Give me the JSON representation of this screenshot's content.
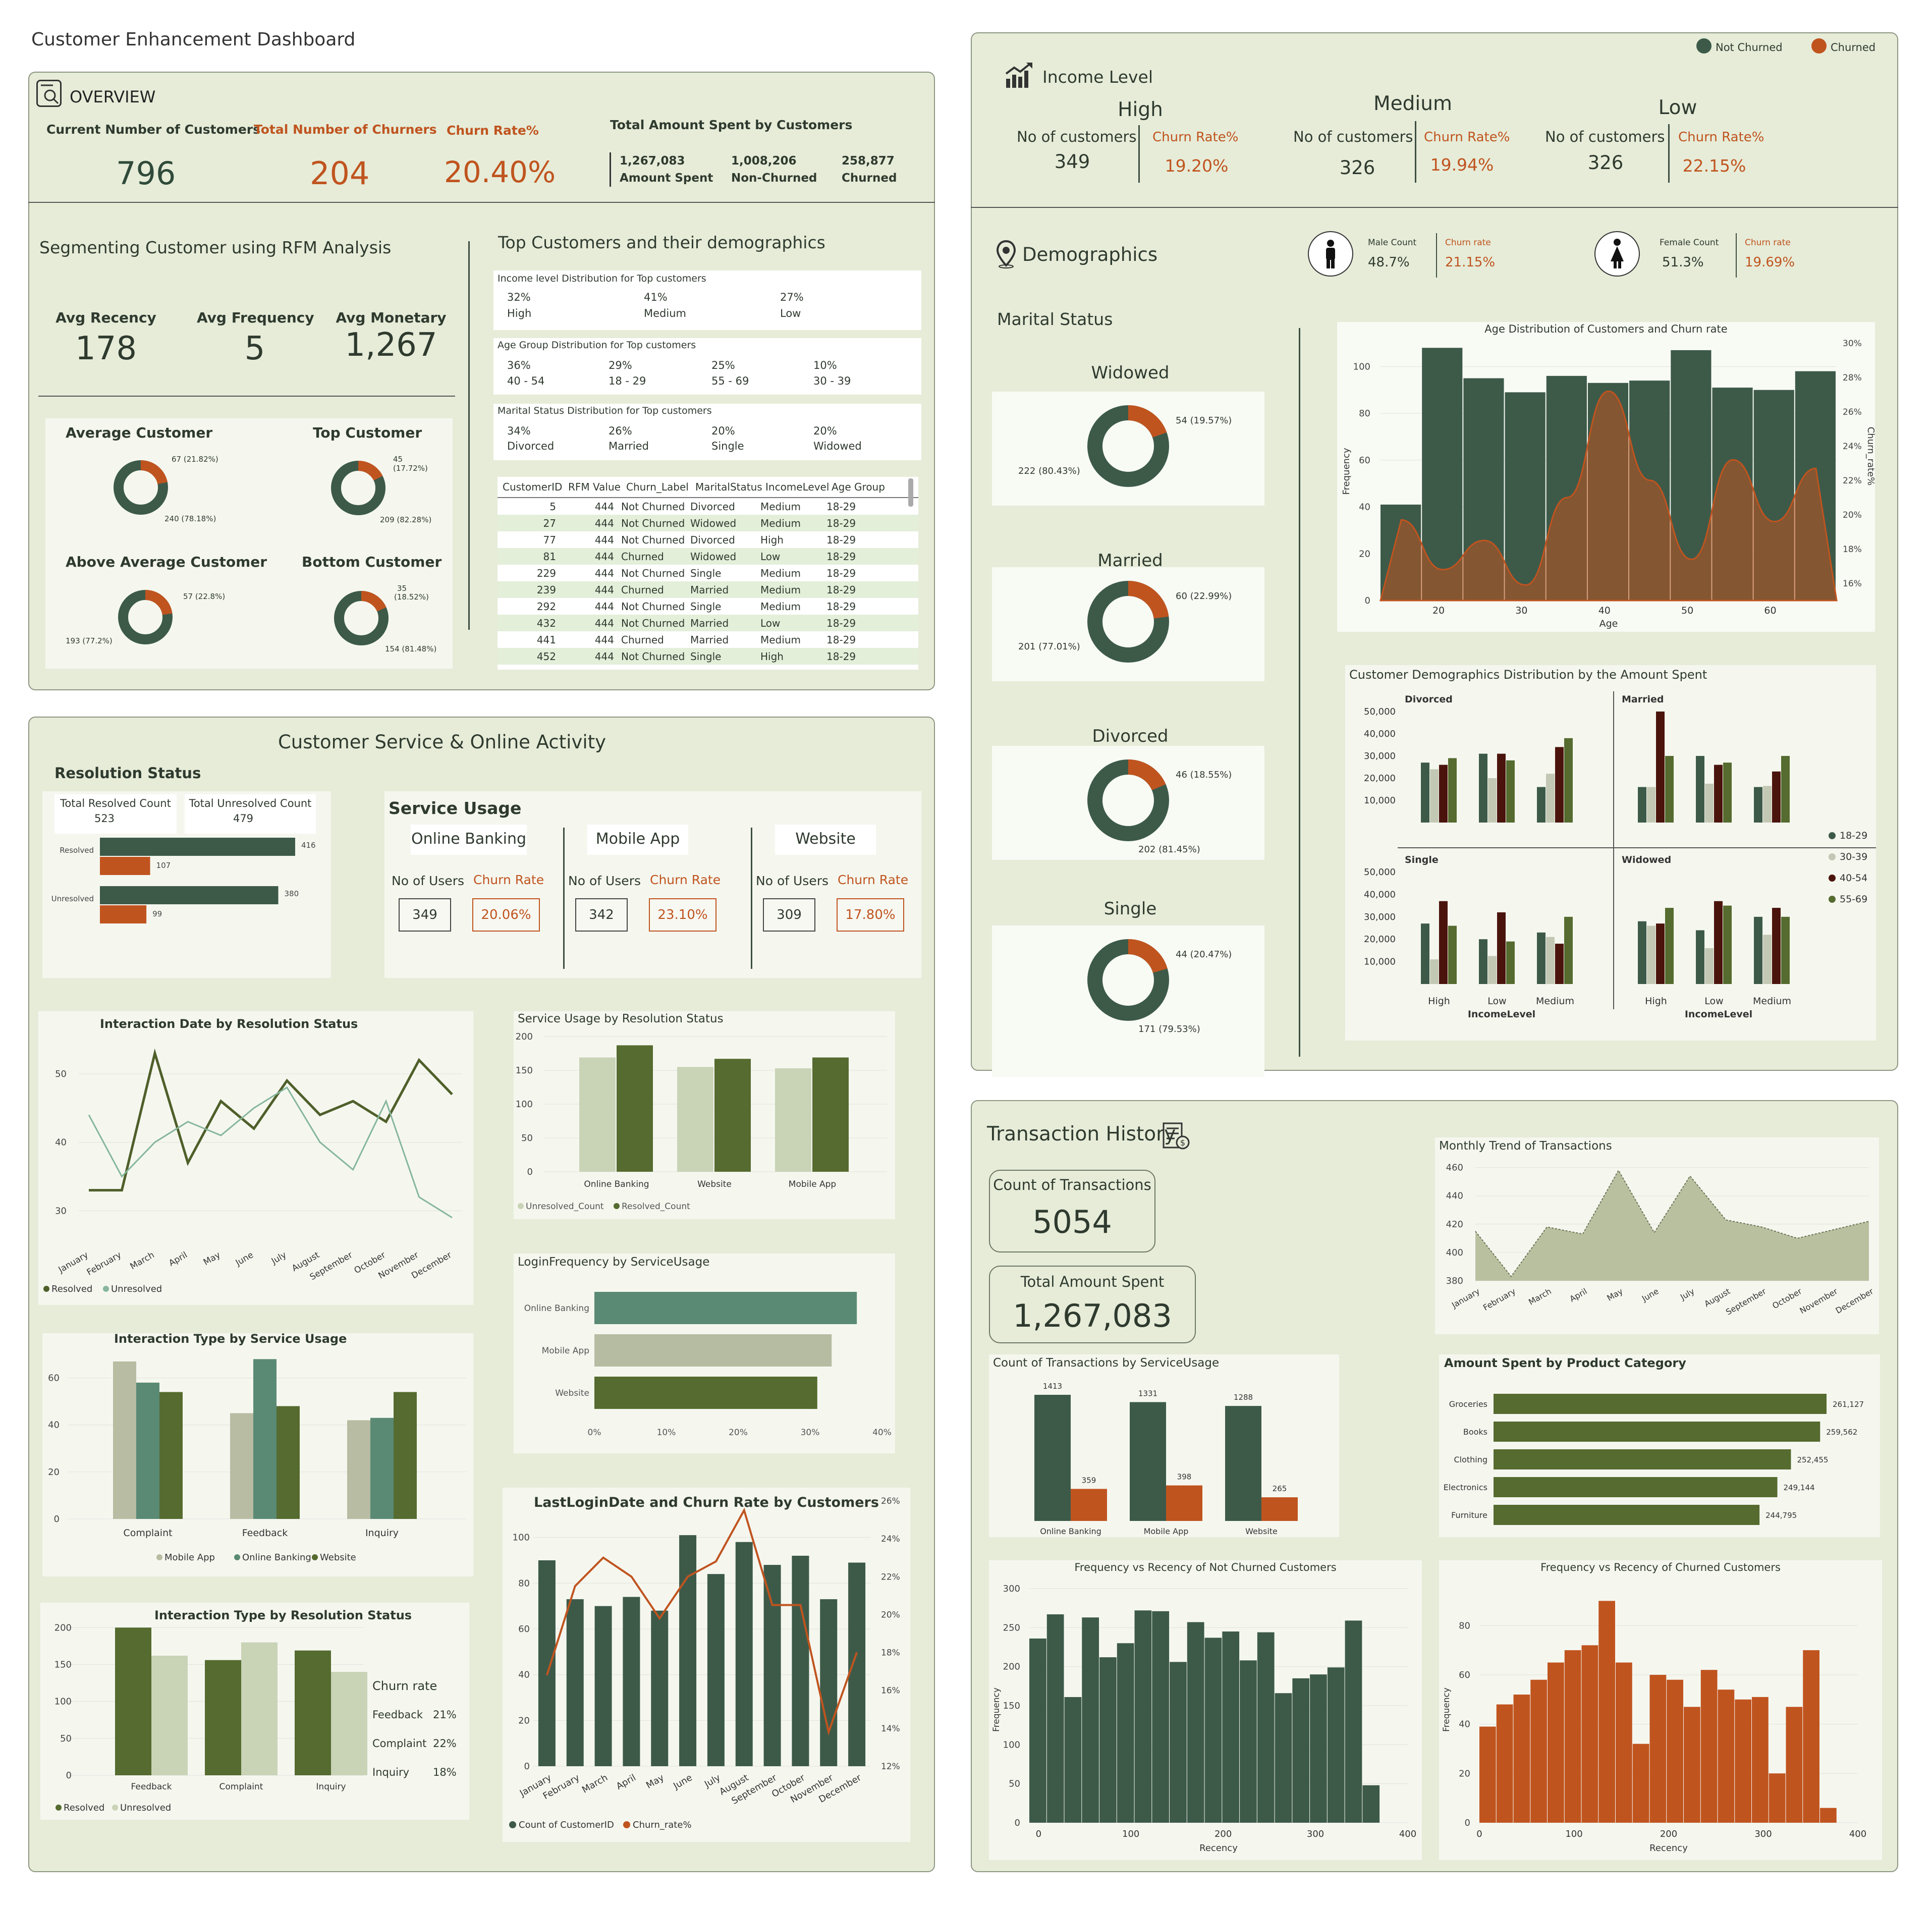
{
  "page_title": "Customer Enhancement Dashboard",
  "colors": {
    "dark_green": "#3d5a49",
    "orange": "#c0541f",
    "olive": "#556b2f",
    "sage": "#c9d3b6",
    "teal": "#5a8a74",
    "maroon": "#4a140d",
    "panel": "#e6ecd8"
  },
  "overview": {
    "title": "OVERVIEW",
    "current_label": "Current Number of Customers",
    "current_value": "796",
    "churners_label": "Total Number of Churners",
    "churners_value": "204",
    "churn_rate_label": "Churn Rate%",
    "churn_rate_value": "20.40%",
    "amount_label": "Total Amount Spent by Customers",
    "amount_spent": "1,267,083",
    "amount_spent_label": "Amount Spent",
    "non_churned": "1,008,206",
    "non_churned_label": "Non-Churned",
    "churned": "258,877",
    "churned_label": "Churned"
  },
  "rfm": {
    "title": "Segmenting Customer using RFM Analysis",
    "recency_label": "Avg Recency",
    "recency_value": "178",
    "frequency_label": "Avg Frequency",
    "frequency_value": "5",
    "monetary_label": "Avg Monetary",
    "monetary_value": "1,267",
    "segments": [
      {
        "name": "Average Customer",
        "churned": "67 (21.82%)",
        "not_churned": "240 (78.18%)",
        "pct": 21.82
      },
      {
        "name": "Top Customer",
        "churned": "45 (17.72%)",
        "churned_a": "45",
        "churned_b": "(17.72%)",
        "not_churned": "209 (82.28%)",
        "pct": 17.72
      },
      {
        "name": "Above Average Customer",
        "churned": "57 (22.8%)",
        "not_churned": "193 (77.2%)",
        "pct": 22.8
      },
      {
        "name": "Bottom Customer",
        "churned": "35 (18.52%)",
        "churned_a": "35",
        "churned_b": "(18.52%)",
        "not_churned": "154 (81.48%)",
        "pct": 18.52
      }
    ]
  },
  "top_customers": {
    "title": "Top Customers and their demographics",
    "income_title": "Income level Distribution for Top customers",
    "income": [
      {
        "pct": "32%",
        "label": "High"
      },
      {
        "pct": "41%",
        "label": "Medium"
      },
      {
        "pct": "27%",
        "label": "Low"
      }
    ],
    "age_title": "Age Group Distribution for Top customers",
    "age": [
      {
        "pct": "36%",
        "label": "40 - 54"
      },
      {
        "pct": "29%",
        "label": "18 - 29"
      },
      {
        "pct": "25%",
        "label": "55 - 69"
      },
      {
        "pct": "10%",
        "label": "30 - 39"
      }
    ],
    "marital_title": "Marital Status Distribution for Top customers",
    "marital": [
      {
        "pct": "34%",
        "label": "Divorced"
      },
      {
        "pct": "26%",
        "label": "Married"
      },
      {
        "pct": "20%",
        "label": "Single"
      },
      {
        "pct": "20%",
        "label": "Widowed"
      }
    ],
    "table_headers": [
      "CustomerID",
      "RFM Value",
      "Churn_Label",
      "MaritalStatus",
      "IncomeLevel",
      "Age Group"
    ],
    "table_rows": [
      [
        "5",
        "444",
        "Not Churned",
        "Divorced",
        "Medium",
        "18-29"
      ],
      [
        "27",
        "444",
        "Not Churned",
        "Widowed",
        "Medium",
        "18-29"
      ],
      [
        "77",
        "444",
        "Not Churned",
        "Divorced",
        "High",
        "18-29"
      ],
      [
        "81",
        "444",
        "Churned",
        "Widowed",
        "Low",
        "18-29"
      ],
      [
        "229",
        "444",
        "Not Churned",
        "Single",
        "Medium",
        "18-29"
      ],
      [
        "239",
        "444",
        "Churned",
        "Married",
        "Medium",
        "18-29"
      ],
      [
        "292",
        "444",
        "Not Churned",
        "Single",
        "Medium",
        "18-29"
      ],
      [
        "432",
        "444",
        "Not Churned",
        "Married",
        "Low",
        "18-29"
      ],
      [
        "441",
        "444",
        "Churned",
        "Married",
        "Medium",
        "18-29"
      ],
      [
        "452",
        "444",
        "Not Churned",
        "Single",
        "High",
        "18-29"
      ]
    ]
  },
  "customer_service": {
    "title": "Customer Service & Online Activity",
    "resolution_title": "Resolution Status",
    "resolved_label": "Total Resolved Count",
    "resolved_value": "523",
    "unresolved_label": "Total Unresolved Count",
    "unresolved_value": "479",
    "res_rows": [
      {
        "label": "Resolved",
        "a": 416,
        "b": 107
      },
      {
        "label": "Unresolved",
        "a": 380,
        "b": 99
      }
    ],
    "service_usage_title": "Service Usage",
    "services": [
      {
        "name": "Online Banking",
        "users": "349",
        "churn": "20.06%"
      },
      {
        "name": "Mobile App",
        "users": "342",
        "churn": "23.10%"
      },
      {
        "name": "Website",
        "users": "309",
        "churn": "17.80%"
      }
    ],
    "users_label": "No of Users",
    "churn_label": "Churn Rate"
  },
  "income_level": {
    "title": "Income Level",
    "legend": [
      "Not Churned",
      "Churned"
    ],
    "levels": [
      {
        "name": "High",
        "count": "349",
        "churn": "19.20%"
      },
      {
        "name": "Medium",
        "count": "326",
        "churn": "19.94%"
      },
      {
        "name": "Low",
        "count": "326",
        "churn": "22.15%"
      }
    ],
    "count_label": "No of customers",
    "churn_label": "Churn Rate%"
  },
  "demographics": {
    "title": "Demographics",
    "male_label": "Male Count",
    "male_value": "48.7%",
    "male_churn_label": "Churn rate",
    "male_churn": "21.15%",
    "female_label": "Female Count",
    "female_value": "51.3%",
    "female_churn_label": "Churn rate",
    "female_churn": "19.69%",
    "marital_title": "Marital Status",
    "marital": [
      {
        "name": "Widowed",
        "churned": "54 (19.57%)",
        "not_churned": "222 (80.43%)",
        "pct": 19.57
      },
      {
        "name": "Married",
        "churned": "60 (22.99%)",
        "not_churned": "201 (77.01%)",
        "pct": 22.99
      },
      {
        "name": "Divorced",
        "churned": "46 (18.55%)",
        "not_churned": "202 (81.45%)",
        "pct": 18.55
      },
      {
        "name": "Single",
        "churned": "44 (20.47%)",
        "not_churned": "171 (79.53%)",
        "pct": 20.47
      }
    ]
  },
  "transaction": {
    "title": "Transaction History",
    "count_label": "Count of Transactions",
    "count_value": "5054",
    "amount_label": "Total Amount Spent",
    "amount_value": "1,267,083"
  },
  "chart_data": [
    {
      "id": "interaction_date",
      "type": "line",
      "title": "Interaction Date by Resolution Status",
      "categories": [
        "January",
        "February",
        "March",
        "April",
        "May",
        "June",
        "July",
        "August",
        "September",
        "October",
        "November",
        "December"
      ],
      "series": [
        {
          "name": "Resolved",
          "values": [
            33,
            33,
            53,
            37,
            46,
            42,
            49,
            44,
            46,
            43,
            52,
            47
          ]
        },
        {
          "name": "Unresolved",
          "values": [
            44,
            35,
            40,
            43,
            41,
            45,
            48,
            40,
            36,
            46,
            32,
            29
          ]
        }
      ],
      "yticks": [
        30,
        40,
        50
      ],
      "ylim": [
        27,
        55
      ]
    },
    {
      "id": "service_usage_resolution",
      "type": "bar",
      "title": "Service Usage by Resolution Status",
      "categories": [
        "Online Banking",
        "Website",
        "Mobile App"
      ],
      "series": [
        {
          "name": "Unresolved_Count",
          "values": [
            169,
            155,
            153
          ]
        },
        {
          "name": "Resolved_Count",
          "values": [
            187,
            167,
            169
          ]
        }
      ],
      "yticks": [
        0,
        50,
        100,
        150,
        200
      ],
      "ylim": [
        0,
        200
      ]
    },
    {
      "id": "interaction_type_service",
      "type": "bar",
      "title": "Interaction Type by Service Usage",
      "categories": [
        "Complaint",
        "Feedback",
        "Inquiry"
      ],
      "series": [
        {
          "name": "Mobile App",
          "values": [
            67,
            45,
            42
          ]
        },
        {
          "name": "Online Banking",
          "values": [
            58,
            68,
            43
          ]
        },
        {
          "name": "Website",
          "values": [
            54,
            48,
            54
          ]
        }
      ],
      "yticks": [
        0,
        20,
        40,
        60
      ],
      "ylim": [
        0,
        70
      ]
    },
    {
      "id": "login_frequency",
      "type": "bar",
      "title": "LoginFrequency by ServiceUsage",
      "categories": [
        "Online Banking",
        "Mobile App",
        "Website"
      ],
      "values": [
        36.5,
        33,
        31
      ],
      "xticks": [
        "0%",
        "10%",
        "20%",
        "30%",
        "40%"
      ],
      "xlim": [
        0,
        40
      ]
    },
    {
      "id": "interaction_type_resolution",
      "type": "bar",
      "title": "Interaction Type by Resolution Status",
      "categories": [
        "Feedback",
        "Complaint",
        "Inquiry"
      ],
      "series": [
        {
          "name": "Resolved",
          "values": [
            200,
            156,
            169
          ]
        },
        {
          "name": "Unresolved",
          "values": [
            162,
            180,
            140
          ]
        }
      ],
      "yticks": [
        0,
        50,
        100,
        150,
        200
      ],
      "ylim": [
        0,
        205
      ],
      "churn_title": "Churn rate",
      "churn_rates": [
        {
          "label": "Feedback",
          "value": "21%"
        },
        {
          "label": "Complaint",
          "value": "22%"
        },
        {
          "label": "Inquiry",
          "value": "18%"
        }
      ]
    },
    {
      "id": "last_login",
      "type": "bar",
      "title": "LastLoginDate and Churn Rate by Customers",
      "categories": [
        "January",
        "February",
        "March",
        "April",
        "May",
        "June",
        "July",
        "August",
        "September",
        "October",
        "November",
        "December"
      ],
      "series": [
        {
          "name": "Count of CustomerID",
          "values": [
            90,
            73,
            70,
            74,
            68,
            101,
            84,
            98,
            88,
            92,
            73,
            89
          ]
        },
        {
          "name": "Churn_rate%",
          "values": [
            16.8,
            21.5,
            23,
            22,
            19.8,
            22,
            22.8,
            25.5,
            20.5,
            20.5,
            13.8,
            18
          ]
        }
      ],
      "yticks": [
        0,
        20,
        40,
        60,
        80,
        100
      ],
      "ylim": [
        0,
        105
      ],
      "y2ticks": [
        "12%",
        "14%",
        "16%",
        "18%",
        "20%",
        "22%",
        "24%",
        "26%"
      ],
      "y2lim": [
        12,
        26
      ]
    },
    {
      "id": "age_distribution",
      "type": "bar",
      "title": "Age Distribution of Customers and Churn rate",
      "xlabel": "Age",
      "ylabel": "Frequency",
      "y2label": "Churn_rate%",
      "bins": [
        [
          13,
          18
        ],
        [
          18,
          23
        ],
        [
          23,
          28
        ],
        [
          28,
          33
        ],
        [
          33,
          38
        ],
        [
          38,
          43
        ],
        [
          43,
          48
        ],
        [
          48,
          53
        ],
        [
          53,
          58
        ],
        [
          58,
          63
        ],
        [
          63,
          68
        ]
      ],
      "values": [
        41,
        108,
        95,
        89,
        96,
        93,
        94,
        107,
        91,
        90,
        98
      ],
      "churn_points": [
        [
          13,
          19.7
        ],
        [
          18,
          16.8
        ],
        [
          23,
          18.5
        ],
        [
          28,
          15.9
        ],
        [
          33,
          21
        ],
        [
          38,
          27.2
        ],
        [
          43,
          22
        ],
        [
          48,
          17.4
        ],
        [
          53,
          23.2
        ],
        [
          58,
          19.6
        ],
        [
          63,
          22.7
        ]
      ],
      "xticks": [
        20,
        30,
        40,
        50,
        60
      ],
      "yticks": [
        0,
        20,
        40,
        60,
        80,
        100
      ],
      "ylim": [
        0,
        110
      ],
      "y2ticks": [
        "16%",
        "18%",
        "20%",
        "22%",
        "24%",
        "26%",
        "28%",
        "30%"
      ],
      "y2lim": [
        15,
        30
      ]
    },
    {
      "id": "demographics_amount",
      "type": "bar",
      "title": "Customer Demographics Distribution by the Amount Spent",
      "panels": [
        {
          "name": "Divorced",
          "categories": [
            "High",
            "Low",
            "Medium"
          ],
          "series": [
            [
              27000,
              31000,
              16000
            ],
            [
              24000,
              20000,
              22000
            ],
            [
              26000,
              31000,
              34000
            ],
            [
              29000,
              28000,
              38000
            ]
          ]
        },
        {
          "name": "Married",
          "categories": [
            "High",
            "Low",
            "Medium"
          ],
          "series": [
            [
              16000,
              30000,
              16000
            ],
            [
              16000,
              17500,
              16500
            ],
            [
              50000,
              26000,
              23000
            ],
            [
              30000,
              27000,
              30000
            ]
          ]
        },
        {
          "name": "Single",
          "categories": [
            "High",
            "Low",
            "Medium"
          ],
          "series": [
            [
              27000,
              20000,
              23000
            ],
            [
              11000,
              12500,
              21000
            ],
            [
              37000,
              32000,
              18000
            ],
            [
              26000,
              19000,
              30000
            ]
          ]
        },
        {
          "name": "Widowed",
          "categories": [
            "High",
            "Low",
            "Medium"
          ],
          "series": [
            [
              28000,
              24000,
              30000
            ],
            [
              26000,
              16000,
              22000
            ],
            [
              27000,
              37000,
              34000
            ],
            [
              34000,
              35000,
              30000
            ]
          ]
        }
      ],
      "series_names": [
        "18-29",
        "30-39",
        "40-54",
        "55-69"
      ],
      "yticks": [
        "10,000",
        "20,000",
        "30,000",
        "40,000",
        "50,000"
      ],
      "xlabel": "IncomeLevel"
    },
    {
      "id": "monthly_trend",
      "type": "area",
      "title": "Monthly Trend of Transactions",
      "categories": [
        "January",
        "February",
        "March",
        "April",
        "May",
        "June",
        "July",
        "August",
        "September",
        "October",
        "November",
        "December"
      ],
      "values": [
        415,
        383,
        418,
        413,
        458,
        414,
        454,
        423,
        418,
        410,
        416,
        422
      ],
      "yticks": [
        380,
        400,
        420,
        440,
        460
      ],
      "ylim": [
        380,
        462
      ]
    },
    {
      "id": "tx_by_service",
      "type": "bar",
      "title": "Count of Transactions by ServiceUsage",
      "categories": [
        "Online Banking",
        "Mobile App",
        "Website"
      ],
      "series": [
        {
          "name": "Not Churned",
          "values": [
            1413,
            1331,
            1288
          ]
        },
        {
          "name": "Churned",
          "values": [
            359,
            398,
            265
          ]
        }
      ]
    },
    {
      "id": "amount_by_category",
      "type": "bar",
      "title": "Amount Spent by Product Category",
      "categories": [
        "Groceries",
        "Books",
        "Clothing",
        "Electronics",
        "Furniture"
      ],
      "values": [
        261127,
        259562,
        252455,
        249144,
        244795
      ],
      "labels": [
        "261,127",
        "259,562",
        "252,455",
        "249,144",
        "244,795"
      ]
    },
    {
      "id": "freq_recency_not_churned",
      "type": "bar",
      "title": "Frequency vs Recency of Not Churned Customers",
      "xlabel": "Recency",
      "ylabel": "Frequency",
      "values": [
        236,
        267,
        161,
        263,
        212,
        230,
        272,
        271,
        206,
        257,
        237,
        245,
        208,
        244,
        166,
        185,
        190,
        199,
        259,
        48
      ],
      "xticks": [
        0,
        100,
        200,
        300,
        400
      ],
      "xlim": [
        -10,
        400
      ],
      "bin_start": -10,
      "bin_width": 19,
      "yticks": [
        0,
        50,
        100,
        150,
        200,
        250,
        300
      ],
      "ylim": [
        0,
        300
      ]
    },
    {
      "id": "freq_recency_churned",
      "type": "bar",
      "title": "Frequency vs Recency of Churned Customers",
      "xlabel": "Recency",
      "ylabel": "Frequency",
      "values": [
        39,
        48,
        52,
        58,
        65,
        70,
        72,
        90,
        65,
        32,
        60,
        58,
        47,
        62,
        54,
        50,
        51,
        20,
        47,
        70,
        6
      ],
      "xticks": [
        0,
        100,
        200,
        300,
        400
      ],
      "xlim": [
        0,
        400
      ],
      "bin_start": 0,
      "bin_width": 18,
      "yticks": [
        0,
        20,
        40,
        60,
        80
      ],
      "ylim": [
        0,
        95
      ]
    }
  ]
}
